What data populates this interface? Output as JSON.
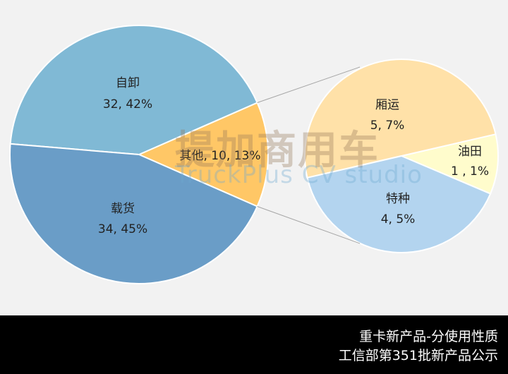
{
  "chart_data": {
    "type": "pie",
    "subtype": "pie-of-pie",
    "main": {
      "slices": [
        {
          "label": "其他",
          "value": 10,
          "percent": "13%",
          "color": "#ffc766"
        },
        {
          "label": "自卸",
          "value": 32,
          "percent": "42%",
          "color": "#80b9d5"
        },
        {
          "label": "载货",
          "value": 34,
          "percent": "45%",
          "color": "#6a9dc7"
        }
      ]
    },
    "secondary": {
      "slices": [
        {
          "label": "油田",
          "value": 1,
          "percent": "1%",
          "color": "#fffccc"
        },
        {
          "label": "厢运",
          "value": 5,
          "percent": "7%",
          "color": "#ffe1a8"
        },
        {
          "label": "特种",
          "value": 4,
          "percent": "5%",
          "color": "#b3d4ef"
        }
      ]
    },
    "data_labels": {
      "main": [
        "其他, 10, 13%",
        "32, 42%",
        "34, 45%"
      ],
      "main_names": [
        "",
        "自卸",
        "载货"
      ],
      "secondary": [
        "1 , 1%",
        "5, 7%",
        "4, 5%"
      ],
      "secondary_names": [
        "油田",
        "厢运",
        "特种"
      ]
    },
    "background": "#f2f2f2"
  },
  "watermark": {
    "cn": "提加商用车",
    "en": "TruckPlus CV studio"
  },
  "footer": {
    "line1": "重卡新产品-分使用性质",
    "line2": "工信部第351批新产品公示"
  }
}
